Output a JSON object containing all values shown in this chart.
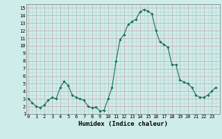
{
  "xlabel": "Humidex (Indice chaleur)",
  "x_values": [
    0,
    0.5,
    1,
    1.5,
    2,
    2.5,
    3,
    3.5,
    4,
    4.5,
    5,
    5.5,
    6,
    6.5,
    7,
    7.5,
    8,
    8.5,
    9,
    9.5,
    10,
    10.5,
    11,
    11.5,
    12,
    12.5,
    13,
    13.5,
    14,
    14.5,
    15,
    15.5,
    16,
    16.5,
    17,
    17.5,
    18,
    18.5,
    19,
    19.5,
    20,
    20.5,
    21,
    21.5,
    22,
    22.5,
    23,
    23.5
  ],
  "y_values": [
    3.0,
    2.5,
    2.0,
    1.8,
    2.2,
    2.8,
    3.2,
    3.0,
    4.5,
    5.3,
    4.8,
    3.5,
    3.2,
    3.0,
    2.8,
    2.0,
    1.8,
    1.9,
    1.4,
    1.5,
    3.0,
    4.5,
    8.0,
    10.8,
    11.5,
    12.8,
    13.2,
    13.5,
    14.5,
    14.8,
    14.6,
    14.2,
    12.0,
    10.5,
    10.2,
    9.8,
    7.5,
    7.5,
    5.5,
    5.2,
    5.0,
    4.5,
    3.5,
    3.2,
    3.2,
    3.5,
    4.0,
    4.5
  ],
  "line_color": "#1a6b5a",
  "marker": "D",
  "marker_size": 1.8,
  "bg_color": "#ceecea",
  "minor_grid_color": "#aed8d5",
  "major_grid_color": "#c8a8a8",
  "xlim": [
    -0.2,
    24
  ],
  "ylim": [
    1,
    15.5
  ],
  "x_ticks": [
    0,
    1,
    2,
    3,
    4,
    5,
    6,
    7,
    8,
    9,
    10,
    11,
    12,
    13,
    14,
    15,
    16,
    17,
    18,
    19,
    20,
    21,
    22,
    23
  ],
  "y_ticks": [
    1,
    2,
    3,
    4,
    5,
    6,
    7,
    8,
    9,
    10,
    11,
    12,
    13,
    14,
    15
  ],
  "tick_fontsize": 5,
  "xlabel_fontsize": 6.5
}
